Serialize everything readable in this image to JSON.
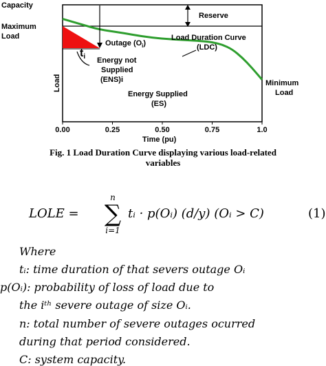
{
  "chart_data": {
    "type": "line",
    "title": "",
    "xlabel": "Time (pu)",
    "ylabel": "Load",
    "xlim": [
      0,
      1.0
    ],
    "x_ticks": [
      "0.00",
      "0.25",
      "0.50",
      "0.75",
      "1.0"
    ],
    "series": [
      {
        "x": [
          0.0,
          0.1,
          0.18,
          0.3,
          0.4,
          0.5,
          0.6,
          0.7,
          0.75,
          0.8,
          0.85,
          0.9,
          0.95,
          1.0
        ],
        "y": [
          0.88,
          0.83,
          0.79,
          0.76,
          0.73,
          0.71,
          0.7,
          0.69,
          0.68,
          0.66,
          0.62,
          0.55,
          0.46,
          0.36
        ]
      }
    ],
    "color_curve": "#2e9e2e",
    "color_ens": "#ee1111",
    "annotations": {
      "capacity": "Capacity",
      "reserve": "Reserve",
      "max_load_1": "Maximum",
      "max_load_2": "Load",
      "outage": "Outage (O",
      "outage_sub": "i",
      "outage_end": ")",
      "t_main": "t",
      "t_sub": "i",
      "ldc_1": "Load Duration Curve",
      "ldc_2": "(LDC)",
      "ens_1": "Energy not",
      "ens_2": "Supplied",
      "ens_3": "(ENS)i",
      "es_1": "Energy Supplied",
      "es_2": "(ES)",
      "min_1": "Minimum",
      "min_2": "Load"
    }
  },
  "caption": {
    "line1": "Fig. 1  Load Duration Curve displaying various load-related",
    "line2": "variables"
  },
  "equation": {
    "lhs": "LOLE =",
    "sum_top": "n",
    "sum_bottom": "i=1",
    "rhs": "tᵢ · p(Oᵢ)  (d/y)  (Oᵢ > C)",
    "number": "(1)"
  },
  "text_lines": [
    "Where",
    "tᵢ:  time duration of that severs outage Oᵢ",
    "p(Oᵢ): probability of loss of load due to",
    "the iᵗʰ severe outage of size Oᵢ.",
    "n: total number of severe outages ocurred",
    "during that period considered.",
    "C: system capacity."
  ]
}
